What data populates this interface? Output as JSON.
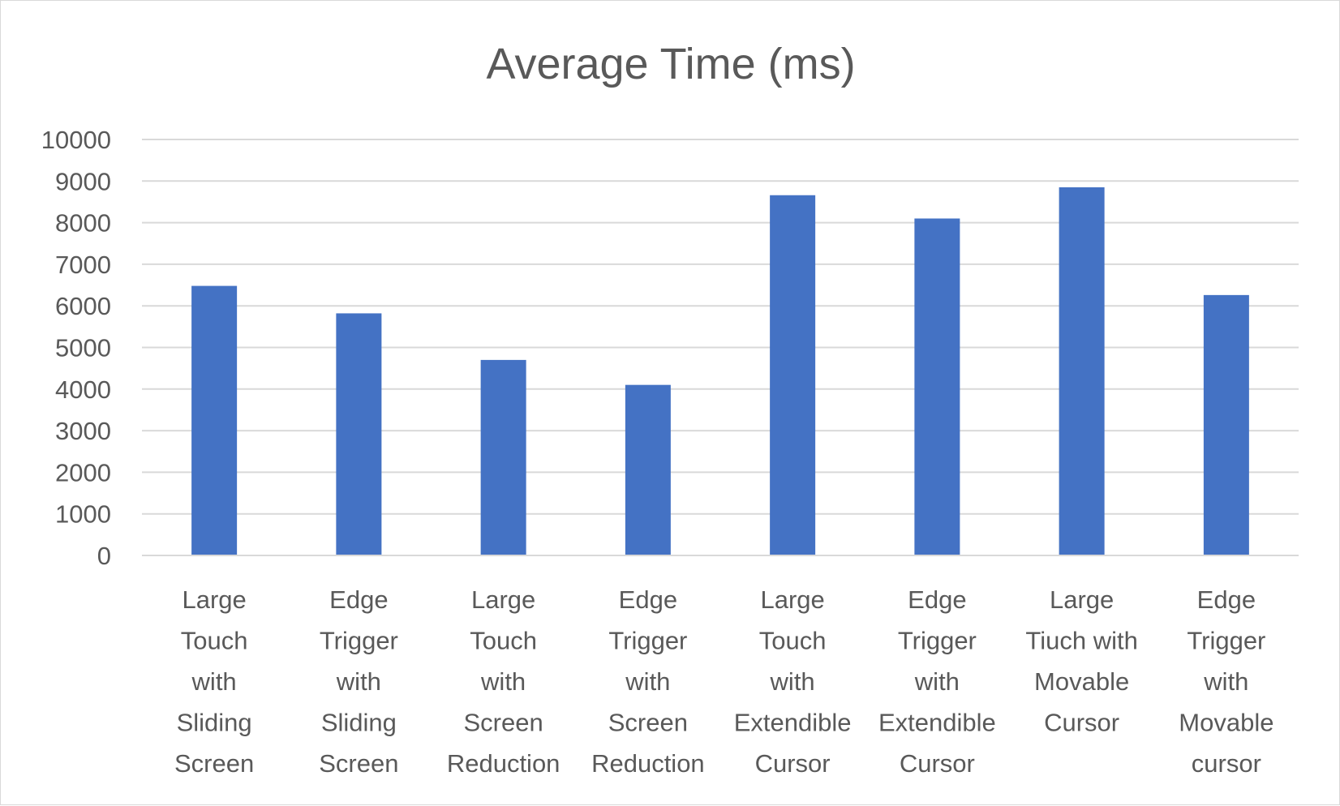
{
  "chart_data": {
    "type": "bar",
    "title": "Average Time (ms)",
    "xlabel": "",
    "ylabel": "",
    "ylim": [
      0,
      10000
    ],
    "yticks": [
      "0",
      "1000",
      "2000",
      "3000",
      "4000",
      "5000",
      "6000",
      "7000",
      "8000",
      "9000",
      "10000"
    ],
    "grid": true,
    "legend": "none",
    "bar_color": "#4472c4",
    "categories": [
      [
        "Large",
        "Touch",
        "with",
        "Sliding",
        "Screen"
      ],
      [
        "Edge",
        "Trigger",
        "with",
        "Sliding",
        "Screen"
      ],
      [
        "Large",
        "Touch",
        "with",
        "Screen",
        "Reduction"
      ],
      [
        "Edge",
        "Trigger",
        "with",
        "Screen",
        "Reduction"
      ],
      [
        "Large",
        "Touch",
        "with",
        "Extendible",
        "Cursor"
      ],
      [
        "Edge",
        "Trigger",
        "with",
        "Extendible",
        "Cursor"
      ],
      [
        "Large",
        "Tiuch with",
        "Movable",
        "Cursor"
      ],
      [
        "Edge",
        "Trigger",
        "with",
        "Movable",
        "cursor"
      ]
    ],
    "values": [
      6480,
      5820,
      4700,
      4100,
      8660,
      8100,
      8850,
      6260
    ]
  }
}
